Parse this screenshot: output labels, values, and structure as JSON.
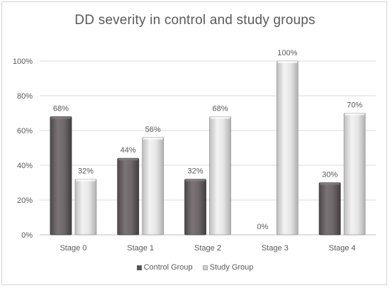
{
  "chart_data": {
    "type": "bar",
    "title": "DD severity in control and study groups",
    "categories": [
      "Stage 0",
      "Stage 1",
      "Stage 2",
      "Stage 3",
      "Stage 4"
    ],
    "series": [
      {
        "name": "Control Group",
        "values": [
          68,
          44,
          32,
          0,
          30
        ],
        "labels": [
          "68%",
          "44%",
          "32%",
          "0%",
          "30%"
        ],
        "color": "#6b6567"
      },
      {
        "name": "Study Group",
        "values": [
          32,
          56,
          68,
          100,
          70
        ],
        "labels": [
          "32%",
          "56%",
          "68%",
          "100%",
          "70%"
        ],
        "color": "#d9d9d9"
      }
    ],
    "ylim": [
      0,
      100
    ],
    "yticks": [
      0,
      20,
      40,
      60,
      80,
      100
    ],
    "ytick_labels": [
      "0%",
      "20%",
      "40%",
      "60%",
      "80%",
      "100%"
    ],
    "grid": true,
    "legend": "bottom"
  }
}
